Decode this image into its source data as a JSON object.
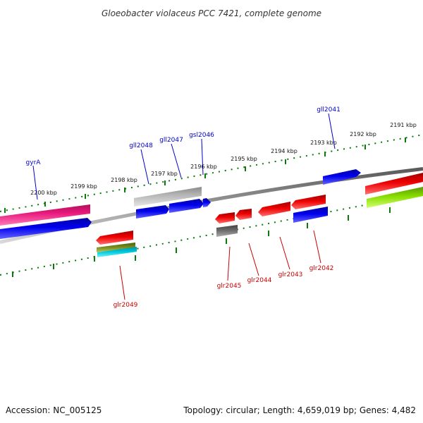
{
  "title": "Gloeobacter violaceus PCC 7421, complete genome",
  "footer": {
    "accession": "Accession: NC_005125",
    "summary": "Topology: circular; Length: 4,659,019 bp; Genes: 4,482"
  },
  "colors": {
    "backbone": "#808080",
    "tick": "#0a7a0a",
    "forward_label": "#0000cc",
    "reverse_label": "#cc0000"
  },
  "scale_labels": [
    "2200 kbp",
    "2199 kbp",
    "2198 kbp",
    "2197 kbp",
    "2196 kbp",
    "2195 kbp",
    "2194 kbp",
    "2193 kbp",
    "2192 kbp",
    "2191 kbp"
  ],
  "gene_labels": {
    "forward": [
      "gyrA",
      "gll2048",
      "gll2047",
      "gsl2046",
      "gll2041"
    ],
    "reverse": [
      "glr2049",
      "glr2045",
      "glr2044",
      "glr2043",
      "glr2042"
    ]
  },
  "feature_colors": [
    "#e8187c",
    "#0000ee",
    "#dd0000",
    "#a0a0a0",
    "#77cc00",
    "#708a20",
    "#00c8d8",
    "#606060"
  ]
}
